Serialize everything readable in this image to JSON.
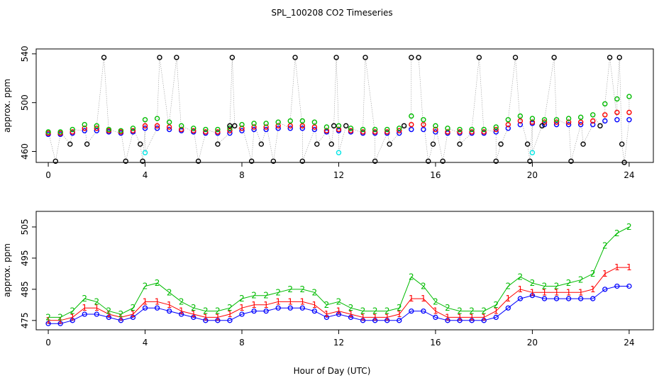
{
  "figure": {
    "title": "SPL_100208  CO2 Timeseries",
    "xlabel": "Hour of Day (UTC)"
  },
  "colors": {
    "black": "#000000",
    "red": "#ff0000",
    "green": "#00bb00",
    "blue": "#0000ff",
    "cyan": "#00e5e5",
    "grey": "#999999"
  },
  "chart_data": [
    {
      "type": "scatter",
      "ylabel": "approx. ppm",
      "xlim": [
        -0.5,
        25
      ],
      "ylim": [
        451,
        544
      ],
      "x_ticks": [
        0,
        4,
        8,
        12,
        16,
        20,
        24
      ],
      "x_tick_labels": [
        "0",
        "4",
        "8",
        "12",
        "16",
        "20",
        "24"
      ],
      "y_ticks": [
        460,
        500,
        540
      ],
      "y_tick_labels": [
        "460",
        "500",
        "540"
      ],
      "series": [
        {
          "name": "blue",
          "color": "#0000ff",
          "x": [
            0,
            0.5,
            1,
            1.5,
            2,
            2.5,
            3,
            3.5,
            4,
            4.5,
            5,
            5.5,
            6,
            6.5,
            7,
            7.5,
            8,
            8.5,
            9,
            9.5,
            10,
            10.5,
            11,
            11.5,
            12,
            12.5,
            13,
            13.5,
            14,
            14.5,
            15,
            15.5,
            16,
            16.5,
            17,
            17.5,
            18,
            18.5,
            19,
            19.5,
            20,
            20.5,
            21,
            21.5,
            22,
            22.5,
            23,
            23.5,
            24
          ],
          "values": [
            474,
            474,
            475,
            477,
            477,
            476,
            475,
            476,
            479,
            479,
            478,
            477,
            476,
            475,
            475,
            475,
            477,
            478,
            478,
            479,
            479,
            479,
            478,
            476,
            477,
            476,
            475,
            475,
            475,
            475,
            478,
            478,
            476,
            475,
            475,
            475,
            475,
            476,
            479,
            482,
            483,
            482,
            482,
            482,
            482,
            482,
            485,
            486,
            486
          ]
        },
        {
          "name": "red",
          "color": "#ff0000",
          "x": [
            0,
            0.5,
            1,
            1.5,
            2,
            2.5,
            3,
            3.5,
            4,
            4.5,
            5,
            5.5,
            6,
            6.5,
            7,
            7.5,
            8,
            8.5,
            9,
            9.5,
            10,
            10.5,
            11,
            11.5,
            12,
            12.5,
            13,
            13.5,
            14,
            14.5,
            15,
            15.5,
            16,
            16.5,
            17,
            17.5,
            18,
            18.5,
            19,
            19.5,
            20,
            20.5,
            21,
            21.5,
            22,
            22.5,
            23,
            23.5,
            24
          ],
          "values": [
            475,
            475,
            476,
            479,
            479,
            477,
            476,
            477,
            481,
            481,
            480,
            478,
            477,
            476,
            476,
            477,
            479,
            480,
            480,
            481,
            481,
            481,
            480,
            477,
            478,
            477,
            476,
            476,
            476,
            477,
            482,
            482,
            478,
            476,
            476,
            476,
            476,
            478,
            482,
            485,
            484,
            484,
            484,
            484,
            484,
            485,
            490,
            492,
            492
          ]
        },
        {
          "name": "green",
          "color": "#00bb00",
          "x": [
            0,
            0.5,
            1,
            1.5,
            2,
            2.5,
            3,
            3.5,
            4,
            4.5,
            5,
            5.5,
            6,
            6.5,
            7,
            7.5,
            8,
            8.5,
            9,
            9.5,
            10,
            10.5,
            11,
            11.5,
            12,
            12.5,
            13,
            13.5,
            14,
            14.5,
            15,
            15.5,
            16,
            16.5,
            17,
            17.5,
            18,
            18.5,
            19,
            19.5,
            20,
            20.5,
            21,
            21.5,
            22,
            22.5,
            23,
            23.5,
            24
          ],
          "values": [
            476,
            476,
            478,
            482,
            481,
            478,
            477,
            479,
            486,
            487,
            484,
            481,
            479,
            478,
            478,
            479,
            482,
            483,
            483,
            484,
            485,
            485,
            484,
            480,
            481,
            479,
            478,
            478,
            478,
            479,
            489,
            486,
            481,
            479,
            478,
            478,
            478,
            480,
            486,
            489,
            487,
            486,
            486,
            487,
            488,
            490,
            499,
            503,
            505
          ]
        },
        {
          "name": "black",
          "color": "#000000",
          "x": [
            0.3,
            0.9,
            1.6,
            2.3,
            3.2,
            3.8,
            3.9,
            4.6,
            5.3,
            6.2,
            7.0,
            7.5,
            7.6,
            7.7,
            8.4,
            8.8,
            9.3,
            10.2,
            10.5,
            11.1,
            11.7,
            11.8,
            11.9,
            12.3,
            13.1,
            13.5,
            14.1,
            14.7,
            15.0,
            15.3,
            15.7,
            15.9,
            16.3,
            17.0,
            17.8,
            18.5,
            18.7,
            19.3,
            19.8,
            19.9,
            20.4,
            20.9,
            21.6,
            22.1,
            22.8,
            23.2,
            23.6,
            23.7,
            23.8
          ],
          "values": [
            452,
            466,
            466,
            537,
            452,
            466,
            452,
            537,
            537,
            452,
            466,
            481,
            537,
            481,
            452,
            466,
            452,
            537,
            452,
            466,
            466,
            481,
            537,
            481,
            537,
            452,
            466,
            481,
            537,
            537,
            452,
            466,
            452,
            466,
            537,
            452,
            466,
            537,
            466,
            452,
            481,
            537,
            452,
            466,
            481,
            537,
            537,
            466,
            451
          ]
        },
        {
          "name": "cyan",
          "color": "#00e5e5",
          "x": [
            4.0,
            12.0,
            20.0
          ],
          "values": [
            459,
            459,
            459
          ]
        }
      ]
    },
    {
      "type": "line",
      "ylabel": "approx. ppm",
      "xlim": [
        -0.5,
        25
      ],
      "ylim": [
        472,
        510
      ],
      "x_ticks": [
        0,
        4,
        8,
        12,
        16,
        20,
        24
      ],
      "x_tick_labels": [
        "0",
        "4",
        "8",
        "12",
        "16",
        "20",
        "24"
      ],
      "y_ticks": [
        475,
        485,
        495,
        505
      ],
      "y_tick_labels": [
        "475",
        "485",
        "495",
        "505"
      ],
      "series": [
        {
          "name": "3",
          "marker": "o",
          "color": "#0000ff",
          "x": [
            0,
            0.5,
            1,
            1.5,
            2,
            2.5,
            3,
            3.5,
            4,
            4.5,
            5,
            5.5,
            6,
            6.5,
            7,
            7.5,
            8,
            8.5,
            9,
            9.5,
            10,
            10.5,
            11,
            11.5,
            12,
            12.5,
            13,
            13.5,
            14,
            14.5,
            15,
            15.5,
            16,
            16.5,
            17,
            17.5,
            18,
            18.5,
            19,
            19.5,
            20,
            20.5,
            21,
            21.5,
            22,
            22.5,
            23,
            23.5,
            24
          ],
          "values": [
            474,
            474,
            475,
            477,
            477,
            476,
            475,
            476,
            479,
            479,
            478,
            477,
            476,
            475,
            475,
            475,
            477,
            478,
            478,
            479,
            479,
            479,
            478,
            476,
            477,
            476,
            475,
            475,
            475,
            475,
            478,
            478,
            476,
            475,
            475,
            475,
            475,
            476,
            479,
            482,
            483,
            482,
            482,
            482,
            482,
            482,
            485,
            486,
            486
          ]
        },
        {
          "name": "1",
          "marker": "1",
          "color": "#ff0000",
          "x": [
            0,
            0.5,
            1,
            1.5,
            2,
            2.5,
            3,
            3.5,
            4,
            4.5,
            5,
            5.5,
            6,
            6.5,
            7,
            7.5,
            8,
            8.5,
            9,
            9.5,
            10,
            10.5,
            11,
            11.5,
            12,
            12.5,
            13,
            13.5,
            14,
            14.5,
            15,
            15.5,
            16,
            16.5,
            17,
            17.5,
            18,
            18.5,
            19,
            19.5,
            20,
            20.5,
            21,
            21.5,
            22,
            22.5,
            23,
            23.5,
            24
          ],
          "values": [
            475,
            475,
            476,
            479,
            479,
            477,
            476,
            477,
            481,
            481,
            480,
            478,
            477,
            476,
            476,
            477,
            479,
            480,
            480,
            481,
            481,
            481,
            480,
            477,
            478,
            477,
            476,
            476,
            476,
            477,
            482,
            482,
            478,
            476,
            476,
            476,
            476,
            478,
            482,
            485,
            484,
            484,
            484,
            484,
            484,
            485,
            490,
            492,
            492
          ]
        },
        {
          "name": "2",
          "marker": "2",
          "color": "#00bb00",
          "x": [
            0,
            0.5,
            1,
            1.5,
            2,
            2.5,
            3,
            3.5,
            4,
            4.5,
            5,
            5.5,
            6,
            6.5,
            7,
            7.5,
            8,
            8.5,
            9,
            9.5,
            10,
            10.5,
            11,
            11.5,
            12,
            12.5,
            13,
            13.5,
            14,
            14.5,
            15,
            15.5,
            16,
            16.5,
            17,
            17.5,
            18,
            18.5,
            19,
            19.5,
            20,
            20.5,
            21,
            21.5,
            22,
            22.5,
            23,
            23.5,
            24
          ],
          "values": [
            476,
            476,
            478,
            482,
            481,
            478,
            477,
            479,
            486,
            487,
            484,
            481,
            479,
            478,
            478,
            479,
            482,
            483,
            483,
            484,
            485,
            485,
            484,
            480,
            481,
            479,
            478,
            478,
            478,
            479,
            489,
            486,
            481,
            479,
            478,
            478,
            478,
            480,
            486,
            489,
            487,
            486,
            486,
            487,
            488,
            490,
            499,
            503,
            505
          ]
        }
      ]
    }
  ]
}
